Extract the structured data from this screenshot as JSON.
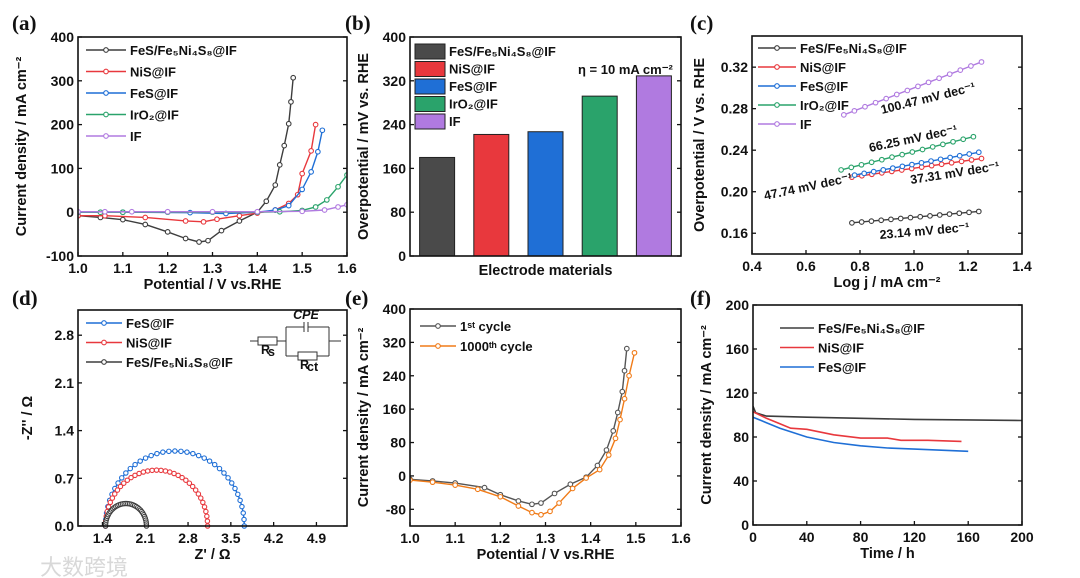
{
  "figure": {
    "watermark": "大数跨境"
  },
  "chart_data": [
    {
      "panel": "(a)",
      "type": "line",
      "xlabel": "Potential / V vs.RHE",
      "ylabel": "Current density / mA cm⁻²",
      "xlim": [
        1.0,
        1.6
      ],
      "ylim": [
        -100,
        400
      ],
      "xticks": [
        "1.0",
        "1.1",
        "1.2",
        "1.3",
        "1.4",
        "1.5",
        "1.6"
      ],
      "yticks": [
        "-100",
        "0",
        "100",
        "200",
        "300",
        "400"
      ],
      "series": [
        {
          "name": "FeS/Fe₅Ni₄S₈@IF",
          "color": "#3d3d3d",
          "x": [
            1.0,
            1.05,
            1.1,
            1.15,
            1.2,
            1.24,
            1.27,
            1.29,
            1.32,
            1.36,
            1.4,
            1.42,
            1.44,
            1.45,
            1.46,
            1.47,
            1.475,
            1.48
          ],
          "y": [
            -8,
            -12,
            -17,
            -28,
            -45,
            -60,
            -68,
            -65,
            -42,
            -20,
            0,
            25,
            62,
            108,
            152,
            202,
            252,
            307
          ]
        },
        {
          "name": "NiS@IF",
          "color": "#e8383d",
          "x": [
            1.0,
            1.06,
            1.15,
            1.24,
            1.28,
            1.31,
            1.36,
            1.4,
            1.44,
            1.47,
            1.49,
            1.5,
            1.52,
            1.53
          ],
          "y": [
            -8,
            -8,
            -12,
            -20,
            -22,
            -16,
            -8,
            -2,
            5,
            20,
            40,
            88,
            140,
            200
          ]
        },
        {
          "name": "FeS@IF",
          "color": "#1f6fd6",
          "x": [
            1.0,
            1.1,
            1.25,
            1.33,
            1.4,
            1.44,
            1.47,
            1.5,
            1.52,
            1.535,
            1.545
          ],
          "y": [
            0,
            0,
            -1,
            -3,
            0,
            5,
            15,
            52,
            92,
            138,
            187
          ]
        },
        {
          "name": "IrO₂@IF",
          "color": "#2aa36b",
          "x": [
            1.0,
            1.05,
            1.1,
            1.2,
            1.3,
            1.4,
            1.45,
            1.5,
            1.53,
            1.555,
            1.58,
            1.6
          ],
          "y": [
            0,
            0,
            0,
            0,
            0,
            0,
            1,
            4,
            12,
            28,
            58,
            85
          ]
        },
        {
          "name": "IF",
          "color": "#b07ae0",
          "x": [
            1.0,
            1.06,
            1.12,
            1.2,
            1.3,
            1.4,
            1.5,
            1.55,
            1.58,
            1.6
          ],
          "y": [
            1,
            1,
            1,
            1,
            1,
            1,
            2,
            5,
            12,
            17
          ]
        }
      ]
    },
    {
      "panel": "(b)",
      "type": "bar",
      "xlabel": "Electrode materials",
      "ylabel": "Overpotential / mV vs. RHE",
      "ylim": [
        0,
        400
      ],
      "yticks": [
        "0",
        "80",
        "160",
        "240",
        "320",
        "400"
      ],
      "annotation": "η = 10 mA cm⁻²",
      "categories": [
        "FeS/Fe₅Ni₄S₈@IF",
        "NiS@IF",
        "FeS@IF",
        "IrO₂@IF",
        "IF"
      ],
      "values": [
        180,
        222,
        227,
        292,
        329
      ],
      "colors": [
        "#4a4a4a",
        "#e8383d",
        "#1f6fd6",
        "#2aa36b",
        "#b07ae0"
      ]
    },
    {
      "panel": "(c)",
      "type": "line",
      "xlabel": "Log j / mA cm⁻²",
      "ylabel": "Overpotential / V vs. RHE",
      "xlim": [
        0.4,
        1.4
      ],
      "ylim": [
        0.14,
        0.35
      ],
      "xticks": [
        "0.4",
        "0.6",
        "0.8",
        "1.0",
        "1.2",
        "1.4"
      ],
      "yticks": [
        "0.16",
        "0.20",
        "0.24",
        "0.28",
        "0.32"
      ],
      "series": [
        {
          "name": "FeS/Fe₅Ni₄S₈@IF",
          "color": "#3d3d3d",
          "x": [
            0.77,
            1.24
          ],
          "y": [
            0.17,
            0.181
          ],
          "slope": "23.14 mV dec⁻¹"
        },
        {
          "name": "NiS@IF",
          "color": "#e8383d",
          "x": [
            0.77,
            1.25
          ],
          "y": [
            0.214,
            0.232
          ],
          "slope": "37.31 mV dec⁻¹"
        },
        {
          "name": "FeS@IF",
          "color": "#1f6fd6",
          "x": [
            0.78,
            1.24
          ],
          "y": [
            0.216,
            0.238
          ],
          "slope": "47.74 mV dec⁻¹"
        },
        {
          "name": "IrO₂@IF",
          "color": "#2aa36b",
          "x": [
            0.73,
            1.22
          ],
          "y": [
            0.221,
            0.253
          ],
          "slope": "66.25 mV dec⁻¹"
        },
        {
          "name": "IF",
          "color": "#b07ae0",
          "x": [
            0.74,
            1.25
          ],
          "y": [
            0.274,
            0.325
          ],
          "slope": "100.47 mV dec⁻¹"
        }
      ]
    },
    {
      "panel": "(d)",
      "type": "scatter",
      "xlabel": "Z' / Ω",
      "ylabel": "-Z'' / Ω",
      "xlim": [
        1.0,
        5.4
      ],
      "ylim": [
        0,
        3.17
      ],
      "xticks": [
        "1.4",
        "2.1",
        "2.8",
        "3.5",
        "4.2",
        "4.9"
      ],
      "yticks": [
        "0.0",
        "0.7",
        "1.4",
        "2.1",
        "2.8"
      ],
      "circuit": {
        "cpe": "CPE",
        "r": "R",
        "rs_sub": "s",
        "rct_sub": "ct"
      },
      "series": [
        {
          "name": "FeS@IF",
          "color": "#1f6fd6",
          "z_start": 1.45,
          "z_end": 3.72,
          "peak": 1.1
        },
        {
          "name": "NiS@IF",
          "color": "#e8383d",
          "z_start": 1.45,
          "z_end": 3.12,
          "peak": 0.82
        },
        {
          "name": "FeS/Fe₅Ni₄S₈@IF",
          "color": "#3d3d3d",
          "z_start": 1.45,
          "z_end": 2.12,
          "peak": 0.33
        }
      ]
    },
    {
      "panel": "(e)",
      "type": "line",
      "xlabel": "Potential / V vs.RHE",
      "ylabel": "Current density / mA cm⁻²",
      "xlim": [
        1.0,
        1.6
      ],
      "ylim": [
        -120,
        400
      ],
      "xticks": [
        "1.0",
        "1.1",
        "1.2",
        "1.3",
        "1.4",
        "1.5",
        "1.6"
      ],
      "yticks": [
        "-80",
        "0",
        "80",
        "160",
        "240",
        "320",
        "400"
      ],
      "series": [
        {
          "name": "1ˢᵗ cycle",
          "color": "#555555",
          "x": [
            1.0,
            1.05,
            1.1,
            1.165,
            1.2,
            1.24,
            1.27,
            1.29,
            1.32,
            1.355,
            1.39,
            1.415,
            1.435,
            1.45,
            1.46,
            1.47,
            1.475,
            1.48
          ],
          "y": [
            -8,
            -12,
            -17,
            -28,
            -45,
            -60,
            -68,
            -65,
            -42,
            -20,
            -3,
            25,
            62,
            108,
            152,
            202,
            252,
            305
          ]
        },
        {
          "name": "1000ᵗʰ cycle",
          "color": "#f07b18",
          "x": [
            1.0,
            1.05,
            1.1,
            1.15,
            1.2,
            1.24,
            1.27,
            1.29,
            1.31,
            1.33,
            1.36,
            1.39,
            1.42,
            1.44,
            1.455,
            1.465,
            1.475,
            1.485,
            1.497
          ],
          "y": [
            -10,
            -15,
            -22,
            -32,
            -50,
            -72,
            -88,
            -93,
            -85,
            -65,
            -30,
            -5,
            15,
            50,
            90,
            135,
            185,
            240,
            295
          ]
        }
      ]
    },
    {
      "panel": "(f)",
      "type": "line",
      "xlabel": "Time / h",
      "ylabel": "Current density / mA cm⁻²",
      "xlim": [
        0,
        200
      ],
      "ylim": [
        0,
        200
      ],
      "xticks": [
        "0",
        "40",
        "80",
        "120",
        "160",
        "200"
      ],
      "yticks": [
        "0",
        "40",
        "80",
        "120",
        "160",
        "200"
      ],
      "series": [
        {
          "name": "FeS/Fe₅Ni₄S₈@IF",
          "color": "#3d3d3d",
          "x": [
            0,
            2,
            10,
            40,
            80,
            120,
            160,
            200
          ],
          "y": [
            108,
            102,
            99,
            98,
            97,
            96,
            95.5,
            95
          ]
        },
        {
          "name": "NiS@IF",
          "color": "#e8383d",
          "x": [
            0,
            10,
            20,
            28,
            40,
            60,
            80,
            100,
            110,
            130,
            155
          ],
          "y": [
            103,
            97,
            92,
            88,
            87,
            82,
            79,
            79,
            77,
            77,
            76
          ]
        },
        {
          "name": "FeS@IF",
          "color": "#1f6fd6",
          "x": [
            0,
            10,
            20,
            40,
            60,
            80,
            100,
            120,
            140,
            160
          ],
          "y": [
            98,
            93,
            88,
            80,
            75,
            72,
            70,
            69,
            68,
            67
          ]
        }
      ]
    }
  ]
}
